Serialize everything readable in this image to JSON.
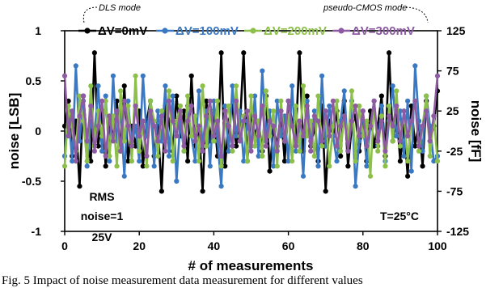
{
  "chart_data": {
    "type": "line",
    "xlabel": "# of measurements",
    "ylabel": "noise [LSB]",
    "ylabel_right": "noise [fF]",
    "xlim": [
      0,
      100
    ],
    "ylim": [
      -1,
      1
    ],
    "ylim_right": [
      -125,
      125
    ],
    "x_ticks": [
      "0",
      "20",
      "40",
      "60",
      "80",
      "100"
    ],
    "y_ticks": [
      "1",
      "0.5",
      "0",
      "-0.5",
      "-1"
    ],
    "y_ticks_right": [
      "125",
      "75",
      "25",
      "-25",
      "-75",
      "-125"
    ],
    "grid": false,
    "legend_position": "top",
    "annotations": {
      "left_note": "DLS mode",
      "right_note": "pseudo-CMOS mode",
      "rms_line1": "RMS",
      "rms_line2": "noise=1",
      "rms_line3": "25V",
      "temperature": "T=25°C"
    },
    "series": [
      {
        "name": "ΔV=0mV",
        "color": "#000000",
        "values": [
          0.05,
          0.3,
          -0.25,
          0.1,
          -0.55,
          0.35,
          -0.1,
          -0.3,
          0.78,
          -0.15,
          0.2,
          -0.35,
          0.1,
          -0.05,
          0.3,
          -0.2,
          0.45,
          -0.3,
          0.05,
          -0.15,
          0.2,
          -0.35,
          0.1,
          0.3,
          -0.25,
          0.05,
          -0.6,
          0.25,
          0.1,
          -0.2,
          0.35,
          -0.05,
          0.2,
          -0.3,
          0.55,
          -0.15,
          0.05,
          -0.6,
          0.3,
          -0.1,
          0.2,
          -0.25,
          0.78,
          -0.35,
          0.1,
          0.25,
          -0.15,
          0.05,
          0.78,
          -0.3,
          0.2,
          -0.05,
          0.1,
          -0.2,
          0.35,
          -0.4,
          0.05,
          -0.15,
          0.2,
          -0.3,
          0.3,
          0.1,
          -0.05,
          0.78,
          -0.2,
          0.35,
          -0.15,
          0.05,
          -0.3,
          0.25,
          -0.6,
          0.1,
          -0.05,
          0.2,
          -0.25,
          0.3,
          -0.35,
          0.05,
          0.15,
          -0.2,
          0.1,
          -0.3,
          0.2,
          -0.15,
          0.05,
          0.35,
          -0.25,
          0.78,
          -0.1,
          0.2,
          -0.3,
          0.05,
          -0.45,
          0.25,
          -0.15,
          0.1,
          -0.35,
          0.3,
          -0.1,
          0.05,
          0.4
        ]
      },
      {
        "name": "ΔV=100mV",
        "color": "#3a78c2",
        "values": [
          -0.25,
          0.2,
          -0.3,
          0.65,
          -0.1,
          0.3,
          -0.35,
          0.1,
          -0.05,
          0.45,
          -0.2,
          0.35,
          -0.3,
          0.55,
          -0.1,
          0.2,
          -0.45,
          0.3,
          -0.15,
          0.05,
          -0.3,
          0.55,
          -0.05,
          0.3,
          -0.35,
          0.2,
          -0.1,
          0.45,
          -0.25,
          0.35,
          -0.5,
          0.1,
          -0.2,
          0.25,
          -0.05,
          -0.3,
          0.4,
          -0.15,
          0.2,
          -0.35,
          0.3,
          -0.1,
          -0.55,
          0.25,
          -0.2,
          0.45,
          -0.05,
          0.2,
          -0.3,
          0.1,
          -0.15,
          0.35,
          -0.25,
          0.6,
          -0.1,
          0.2,
          -0.35,
          0.3,
          -0.05,
          0.15,
          -0.3,
          0.45,
          -0.2,
          0.1,
          -0.45,
          0.3,
          -0.1,
          0.2,
          -0.35,
          0.55,
          -0.15,
          0.25,
          -0.05,
          -0.3,
          0.1,
          0.4,
          -0.2,
          0.3,
          -0.55,
          -0.1,
          0.2,
          -0.35,
          0.05,
          0.3,
          -0.15,
          0.25,
          -0.3,
          0.1,
          0.45,
          -0.05,
          0.2,
          -0.25,
          0.3,
          -0.4,
          0.65,
          0.1,
          -0.2,
          0.35,
          0.05,
          -0.3,
          -0.25
        ]
      },
      {
        "name": "ΔV=200mV",
        "color": "#8cc04a",
        "values": [
          -0.35,
          0.25,
          0.05,
          -0.2,
          0.35,
          0.1,
          -0.3,
          0.45,
          -0.15,
          0.2,
          -0.05,
          0.3,
          -0.25,
          0.15,
          -0.35,
          0.4,
          -0.1,
          0.25,
          -0.3,
          0.55,
          -0.2,
          0.05,
          -0.35,
          0.3,
          0.1,
          -0.25,
          0.2,
          -0.1,
          0.4,
          -0.3,
          0.1,
          0.25,
          -0.2,
          0.35,
          -0.05,
          0.15,
          -0.3,
          0.45,
          -0.15,
          0.2,
          -0.1,
          0.3,
          -0.35,
          0.1,
          0.25,
          -0.2,
          0.45,
          -0.05,
          0.15,
          -0.3,
          0.35,
          -0.15,
          0.1,
          -0.25,
          0.4,
          -0.05,
          0.2,
          -0.35,
          0.3,
          -0.1,
          0.15,
          -0.3,
          0.25,
          -0.2,
          0.45,
          -0.05,
          0.1,
          -0.25,
          0.35,
          -0.15,
          0.2,
          -0.35,
          0.05,
          0.3,
          -0.2,
          0.15,
          -0.1,
          0.4,
          -0.3,
          0.25,
          -0.05,
          0.1,
          -0.45,
          0.3,
          -0.2,
          0.15,
          -0.35,
          0.25,
          -0.1,
          0.4,
          -0.15,
          0.2,
          -0.3,
          0.1,
          0.3,
          -0.2,
          0.05,
          0.35,
          -0.25,
          0.15,
          -0.3
        ]
      },
      {
        "name": "ΔV=300mV",
        "color": "#8e5ba3",
        "values": [
          0.55,
          -0.05,
          0.2,
          -0.3,
          0.15,
          0.35,
          -0.1,
          0.25,
          -0.2,
          0.05,
          0.3,
          -0.25,
          0.15,
          -0.1,
          0.2,
          -0.2,
          0.3,
          0.05,
          -0.15,
          0.25,
          -0.05,
          0.1,
          -0.25,
          0.2,
          0.05,
          -0.1,
          0.15,
          -0.2,
          0.3,
          0.1,
          -0.05,
          0.2,
          -0.15,
          0.1,
          0.25,
          -0.1,
          0.05,
          -0.2,
          0.15,
          0.3,
          -0.05,
          0.1,
          -0.25,
          0.2,
          0.05,
          -0.15,
          0.3,
          -0.1,
          0.1,
          0.2,
          -0.2,
          0.15,
          -0.05,
          0.25,
          -0.15,
          0.1,
          0.05,
          -0.2,
          0.2,
          -0.1,
          0.3,
          0.05,
          -0.15,
          0.1,
          -0.05,
          0.25,
          -0.2,
          0.15,
          0.1,
          -0.1,
          0.2,
          -0.05,
          0.3,
          -0.15,
          0.05,
          0.15,
          -0.2,
          0.1,
          0.25,
          -0.05,
          0.2,
          -0.15,
          0.05,
          0.3,
          -0.1,
          0.1,
          -0.2,
          0.15,
          0.05,
          0.25,
          -0.1,
          0.2,
          -0.05,
          0.1,
          0.3,
          -0.15,
          0.05,
          0.2,
          -0.1,
          0.15,
          0.55
        ]
      }
    ]
  },
  "caption": "Fig. 5 Impact of noise measurement data measurement for different values"
}
